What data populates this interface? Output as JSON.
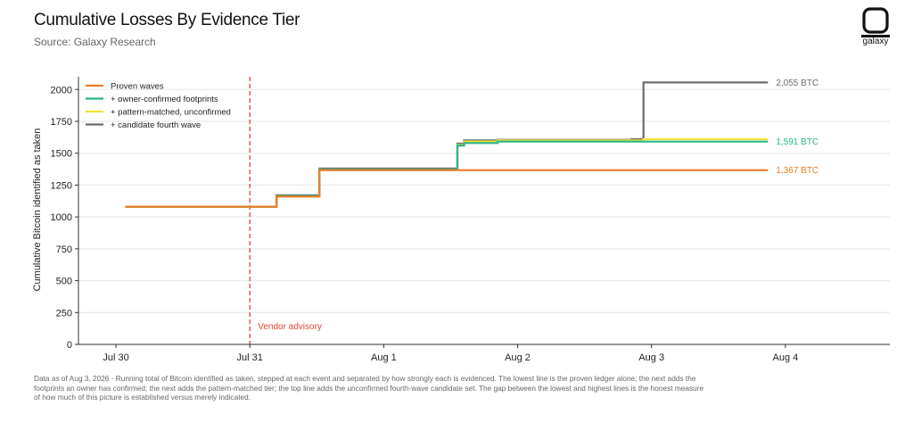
{
  "header": {
    "title": "Cumulative Losses By Evidence Tier",
    "subtitle": "Source: Galaxy Research",
    "logo_text": "galaxy"
  },
  "footnote": "Data as of Aug 3, 2026 · Running total of Bitcoin identified as taken, stepped at each event and separated by how strongly each is evidenced. The lowest line is the proven ledger alone; the next adds the footprints an owner has confirmed; the next adds the pattern-matched tier; the top line adds the unconfirmed fourth-wave candidate set. The gap between the lowest and highest lines is the honest measure of how much of this picture is established versus merely indicated.",
  "chart_data": {
    "type": "line",
    "ylabel": "Cumulative Bitcoin identified as taken",
    "xlabel": "",
    "x_unit": "days since Jul 30, 00:00",
    "xlim": [
      -0.28,
      5.78
    ],
    "ylim": [
      0,
      2100
    ],
    "yticks": [
      0,
      250,
      500,
      750,
      1000,
      1250,
      1500,
      1750,
      2000
    ],
    "xticks": [
      {
        "pos": 0,
        "label": "Jul 30"
      },
      {
        "pos": 1,
        "label": "Jul 31"
      },
      {
        "pos": 2,
        "label": "Aug 1"
      },
      {
        "pos": 3,
        "label": "Aug 2"
      },
      {
        "pos": 4,
        "label": "Aug 3"
      },
      {
        "pos": 5,
        "label": "Aug 4"
      }
    ],
    "grid": "horizontal",
    "legend_position": "top-left",
    "vline": {
      "x": 1.0,
      "label": "Vendor advisory",
      "color": "#e0472e"
    },
    "series": [
      {
        "name": "+ candidate fourth wave",
        "color": "#6b6b6b",
        "end_label": "2,055 BTC",
        "points": [
          [
            0.07,
            1080
          ],
          [
            1.2,
            1080
          ],
          [
            1.2,
            1170
          ],
          [
            1.52,
            1170
          ],
          [
            1.52,
            1380
          ],
          [
            2.55,
            1380
          ],
          [
            2.55,
            1575
          ],
          [
            2.6,
            1575
          ],
          [
            2.6,
            1600
          ],
          [
            2.85,
            1600
          ],
          [
            2.85,
            1605
          ],
          [
            3.85,
            1605
          ],
          [
            3.85,
            1610
          ],
          [
            3.94,
            1610
          ],
          [
            3.94,
            2055
          ],
          [
            4.87,
            2055
          ]
        ]
      },
      {
        "name": "+ pattern-matched, unconfirmed",
        "color": "#f2e33a",
        "end_label": "",
        "points": [
          [
            0.07,
            1080
          ],
          [
            1.2,
            1080
          ],
          [
            1.2,
            1165
          ],
          [
            1.52,
            1165
          ],
          [
            1.52,
            1372
          ],
          [
            2.55,
            1372
          ],
          [
            2.55,
            1565
          ],
          [
            2.6,
            1565
          ],
          [
            2.6,
            1592
          ],
          [
            2.85,
            1592
          ],
          [
            2.85,
            1600
          ],
          [
            3.94,
            1600
          ],
          [
            3.94,
            1610
          ],
          [
            4.87,
            1610
          ]
        ]
      },
      {
        "name": "+ owner-confirmed footprints",
        "color": "#27b58a",
        "end_label": "1,591 BTC",
        "points": [
          [
            0.07,
            1080
          ],
          [
            1.2,
            1080
          ],
          [
            1.2,
            1165
          ],
          [
            1.52,
            1165
          ],
          [
            1.52,
            1372
          ],
          [
            2.55,
            1372
          ],
          [
            2.55,
            1560
          ],
          [
            2.6,
            1560
          ],
          [
            2.6,
            1580
          ],
          [
            2.85,
            1580
          ],
          [
            2.85,
            1591
          ],
          [
            4.87,
            1591
          ]
        ]
      },
      {
        "name": "Proven waves",
        "color": "#ef7a22",
        "end_label": "1,367 BTC",
        "points": [
          [
            0.07,
            1080
          ],
          [
            1.2,
            1080
          ],
          [
            1.2,
            1160
          ],
          [
            1.52,
            1160
          ],
          [
            1.52,
            1367
          ],
          [
            4.87,
            1367
          ]
        ]
      }
    ],
    "legend_order": [
      "Proven waves",
      "+ owner-confirmed footprints",
      "+ pattern-matched, unconfirmed",
      "+ candidate fourth wave"
    ]
  }
}
